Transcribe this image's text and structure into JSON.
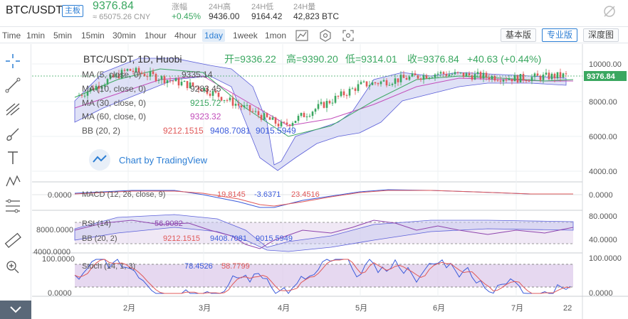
{
  "header": {
    "symbol": "BTC/USDT",
    "badge": "主板",
    "price": "9376.84",
    "cny": "≈ 65075.26 CNY",
    "stats": [
      {
        "label": "涨幅",
        "value": "+0.45%"
      },
      {
        "label": "24H高",
        "value": "9436.00"
      },
      {
        "label": "24H低",
        "value": "9164.42"
      },
      {
        "label": "24H量",
        "value": "42,823 BTC"
      }
    ]
  },
  "toolbar": {
    "timeframes": [
      "Time",
      "1min",
      "5min",
      "15min",
      "30min",
      "1hour",
      "4hour",
      "1day",
      "1week",
      "1mon"
    ],
    "active_timeframe": "1day",
    "views": [
      "基本版",
      "专业版",
      "深度图"
    ],
    "active_view": "专业版"
  },
  "legend": {
    "title": "BTC/USDT, 1D, Huobi",
    "open_label": "开=9336.22",
    "high_label": "高=9390.20",
    "low_label": "低=9314.01",
    "close_label": "收=9376.84",
    "change_label": "+40.63 (+0.44%)",
    "ma5": "MA (5, close, 0)",
    "ma5_val": "9335.14",
    "ma10": "MA (10, close, 0)",
    "ma10_val": "9283.45",
    "ma30": "MA (30, close, 0)",
    "ma30_val": "9215.72",
    "ma60": "MA (60, close, 0)",
    "ma60_val": "9323.32",
    "bb": "BB (20, 2)",
    "bb_vals": [
      "9212.1515",
      "9408.7081",
      "9015.5949"
    ],
    "watermark": "Chart by TradingView"
  },
  "panes": {
    "macd_label": "MACD (12, 26, close, 9)",
    "macd_vals": [
      "19.8145",
      "-3.6371",
      "23.4516"
    ],
    "rsi_label": "RSI (14)",
    "rsi_val": "56.9082",
    "bb2_label": "BB (20, 2)",
    "bb2_vals": [
      "9212.1515",
      "9408.7081",
      "9015.5949"
    ],
    "stoch_label": "Stoch (14, 1, 3)",
    "stoch_vals": [
      "78.4526",
      "58.7799"
    ]
  },
  "axes": {
    "main_ticks": [
      "10000.00",
      "8000.00",
      "6000.00",
      "4000.00"
    ],
    "price_tag": "9376.84",
    "macd_tick": "0.0000",
    "rsi_ticks_right": [
      "80.0000",
      "40.0000"
    ],
    "rsi_ticks_left": [
      "8000.0000",
      "4000.0000"
    ],
    "stoch_ticks_right": [
      "100.0000",
      "0.0000"
    ],
    "stoch_ticks_left": [
      "100.0000",
      "0.0000"
    ],
    "months": [
      "2月",
      "3月",
      "4月",
      "5月",
      "6月",
      "7月",
      "22"
    ]
  },
  "chart_data": {
    "type": "candlestick",
    "ylim": [
      3500,
      10800
    ],
    "x_categories": [
      "2月",
      "3月",
      "4月",
      "5月",
      "6月",
      "7月",
      "22"
    ],
    "monthly_close_estimates": [
      {
        "x": "2月",
        "y": 9700
      },
      {
        "x": "3月",
        "y": 8600
      },
      {
        "x": "4月",
        "y": 6400
      },
      {
        "x": "5月",
        "y": 8800
      },
      {
        "x": "6月",
        "y": 9500
      },
      {
        "x": "7月",
        "y": 9200
      },
      {
        "x": "22",
        "y": 9376.84
      }
    ],
    "colors": {
      "up": "#3aa760",
      "down": "#e05858",
      "bb_fill": "#c5c8ef",
      "ma": "#e07ab0"
    }
  }
}
